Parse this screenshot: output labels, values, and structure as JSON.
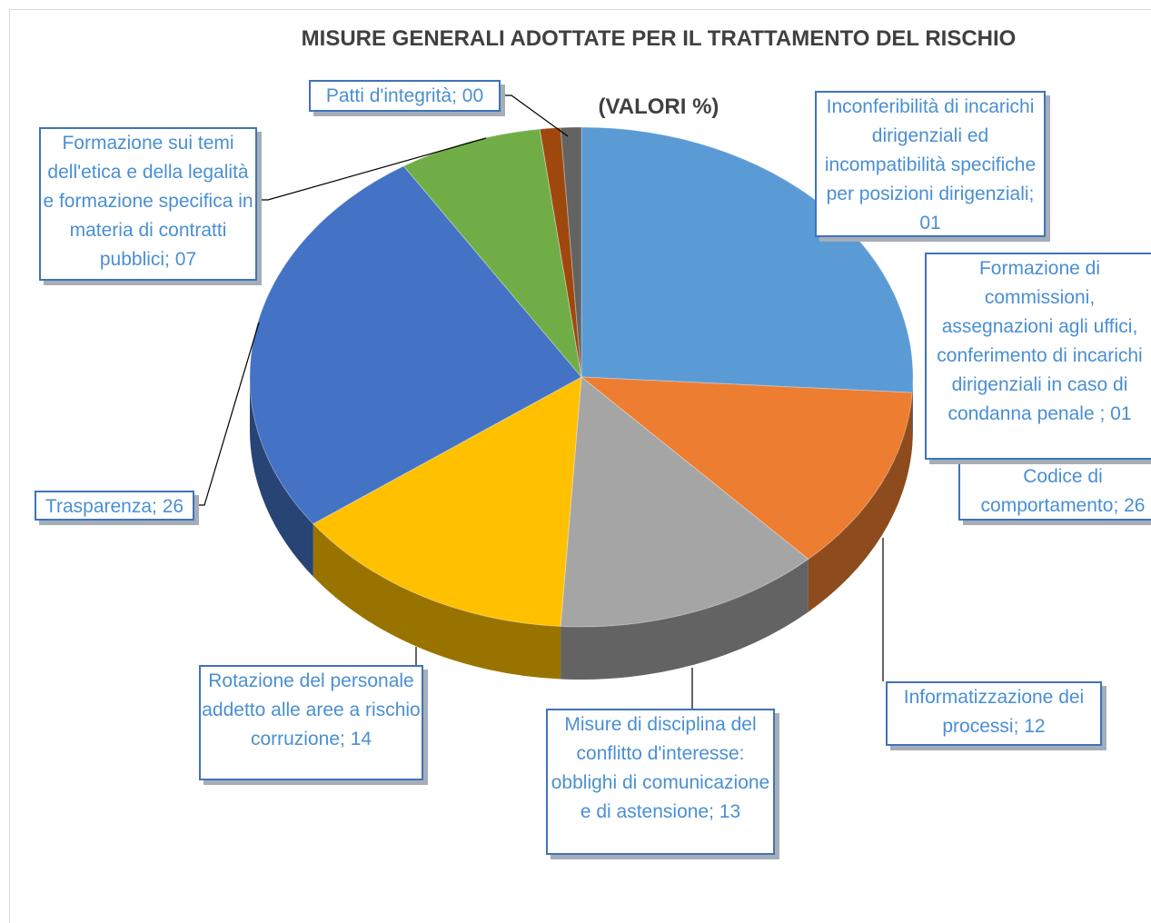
{
  "chart_data": {
    "type": "pie3d",
    "title": "MISURE GENERALI ADOTTATE PER IL TRATTAMENTO DEL RISCHIO (VALORI %)",
    "categories": [
      "Codice di comportamento",
      "Informatizzazione dei processi",
      "Misure di disciplina del conflitto d'interesse: obblighi di comunicazione e di astensione",
      "Rotazione del personale addetto alle aree a rischio corruzione",
      "Trasparenza",
      "Formazione sui temi dell'etica e della legalità e formazione specifica in materia di contratti pubblici",
      "Patti d'integrità",
      "Inconferibilità di incarichi dirigenziali ed incompatibilità specifiche per posizioni dirigenziali",
      "Formazione di commissioni, assegnazioni agli uffici, conferimento di incarichi dirigenziali in caso di condanna penale "
    ],
    "values": [
      26,
      12,
      13,
      14,
      26,
      7,
      0,
      1,
      1
    ],
    "value_labels": [
      "26",
      "12",
      "13",
      "14",
      "26",
      "07",
      "00",
      "01",
      "01"
    ],
    "label_separator": "; ",
    "colors": [
      "#5b9bd5",
      "#ed7d31",
      "#a5a5a5",
      "#ffc000",
      "#4472c4",
      "#70ad47",
      "#264478",
      "#9e480e",
      "#636363"
    ]
  }
}
